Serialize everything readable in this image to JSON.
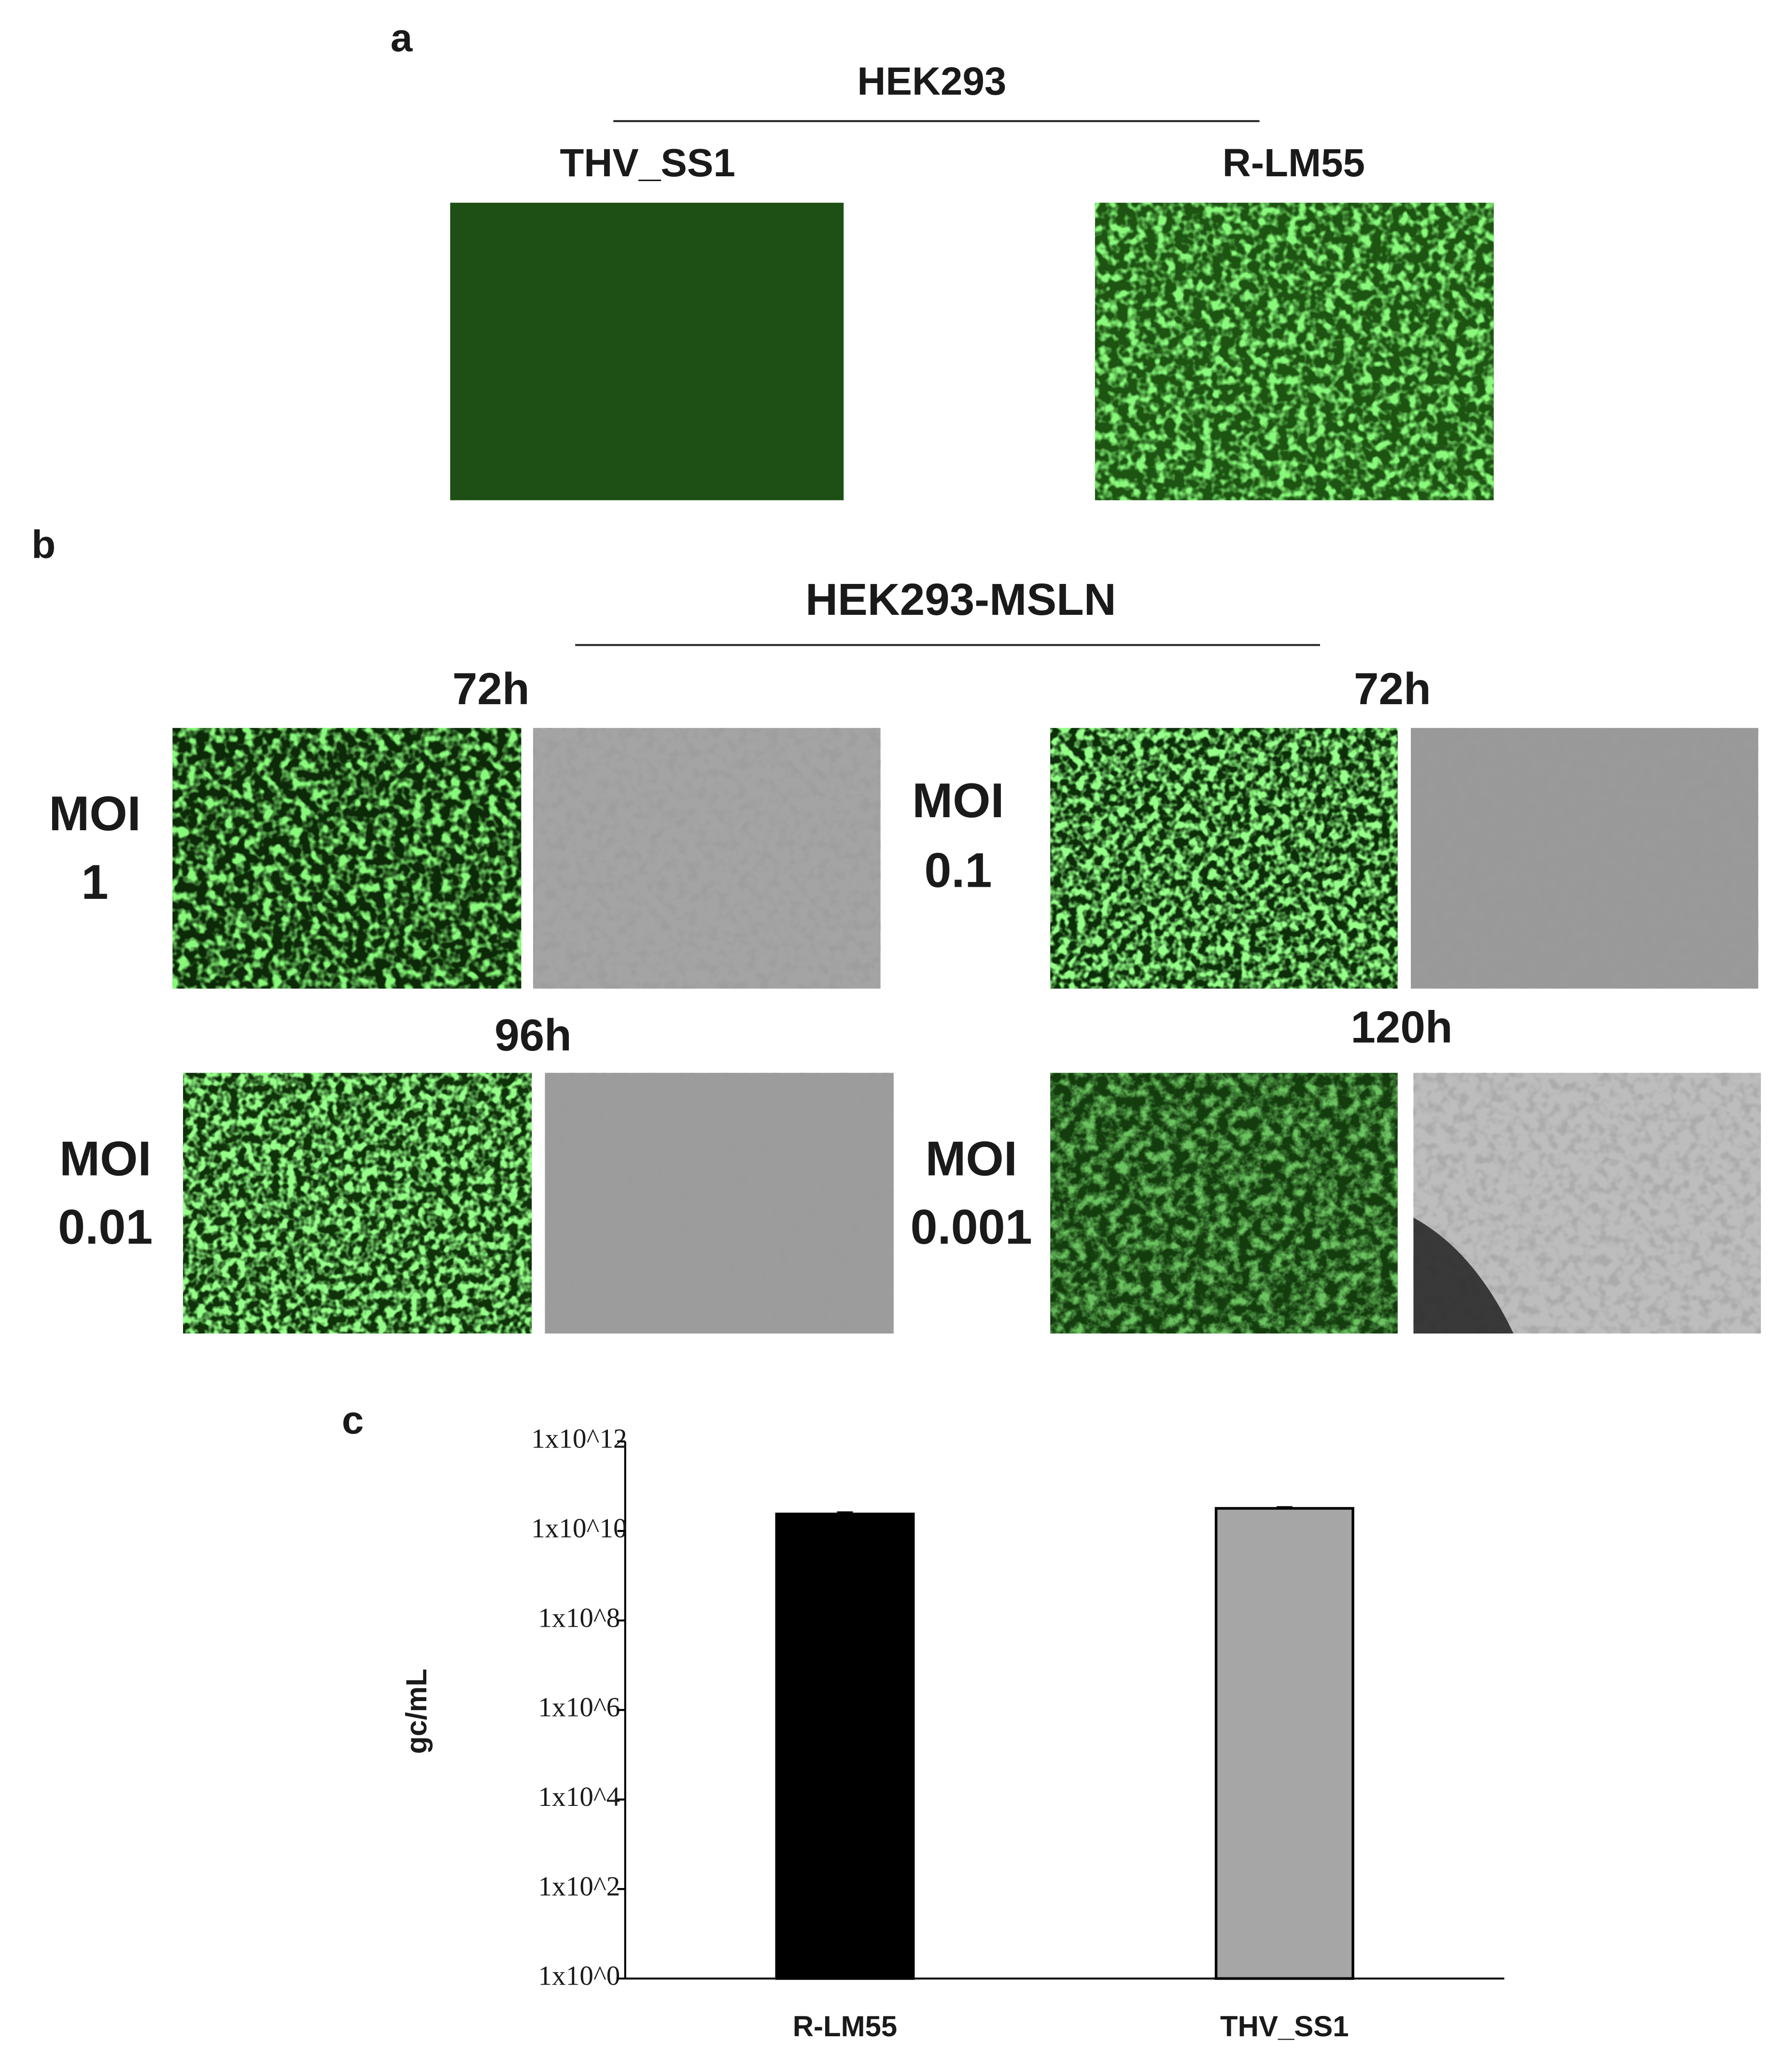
{
  "panel_a": {
    "label": "a",
    "group": "HEK293",
    "columns": [
      "THV_SS1",
      "R-LM55"
    ]
  },
  "panel_b": {
    "label": "b",
    "group": "HEK293-MSLN",
    "panels": [
      {
        "time": "72h",
        "moi": "MOI",
        "dose": "1"
      },
      {
        "time": "72h",
        "moi": "MOI",
        "dose": "0.1"
      },
      {
        "time": "96h",
        "moi": "MOI",
        "dose": "0.01"
      },
      {
        "time": "120h",
        "moi": "MOI",
        "dose": "0.001"
      }
    ]
  },
  "chart_data": {
    "type": "bar",
    "label": "c",
    "ylabel": "gc/mL",
    "categories": [
      "R-LM55",
      "THV_SS1"
    ],
    "values": [
      24000000000,
      32000000000
    ],
    "errors": [
      2000000000,
      2000000000
    ],
    "colors": [
      "#000000",
      "#a6a6a6"
    ],
    "log_scale": true,
    "ylim": [
      1,
      1000000000000
    ],
    "yticks": [
      {
        "value": 1,
        "label": "1x10^0"
      },
      {
        "value": 100,
        "label": "1x10^2"
      },
      {
        "value": 10000,
        "label": "1x10^4"
      },
      {
        "value": 1000000,
        "label": "1x10^6"
      },
      {
        "value": 100000000,
        "label": "1x10^8"
      },
      {
        "value": 10000000000,
        "label": "1x10^10"
      },
      {
        "value": 1000000000000,
        "label": "1x10^12"
      }
    ]
  }
}
